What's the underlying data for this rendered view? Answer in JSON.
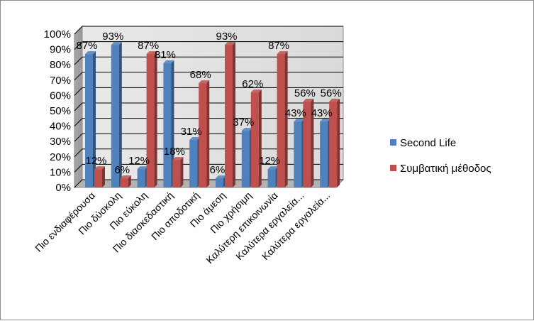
{
  "chart_data": {
    "type": "bar",
    "title": "",
    "xlabel": "",
    "ylabel": "",
    "ylim": [
      0,
      100
    ],
    "y_ticks": [
      "0%",
      "10%",
      "20%",
      "30%",
      "40%",
      "50%",
      "60%",
      "70%",
      "80%",
      "90%",
      "100%"
    ],
    "grid": true,
    "legend_position": "right",
    "categories": [
      "Πιο ενδιαφέρουσα",
      "Πιο δύσκολη",
      "Πιο εύκολη",
      "Πιο διασκεδαστική",
      "Πιο αποδοτική",
      "Πιο άμεση",
      "Πιο χρήσιμη",
      "Καλύτερη επικοινωνία",
      "Καλύτερα εργαλεία...",
      "Καλύτερα εργαλεία..."
    ],
    "series": [
      {
        "name": "Second Life",
        "color": "#4f81bd",
        "values": [
          87,
          93,
          12,
          81,
          31,
          6,
          37,
          12,
          43,
          43
        ],
        "labels": [
          "87%",
          "93%",
          "12%",
          "81%",
          "31%",
          "6%",
          "37%",
          "12%",
          "43%",
          "43%"
        ]
      },
      {
        "name": "Συμβατική μέθοδος",
        "color": "#c0504d",
        "values": [
          12,
          6,
          87,
          18,
          68,
          93,
          62,
          87,
          56,
          56
        ],
        "labels": [
          "12%",
          "6%",
          "87%",
          "18%",
          "68%",
          "93%",
          "62%",
          "87%",
          "56%",
          "56%"
        ]
      }
    ]
  }
}
